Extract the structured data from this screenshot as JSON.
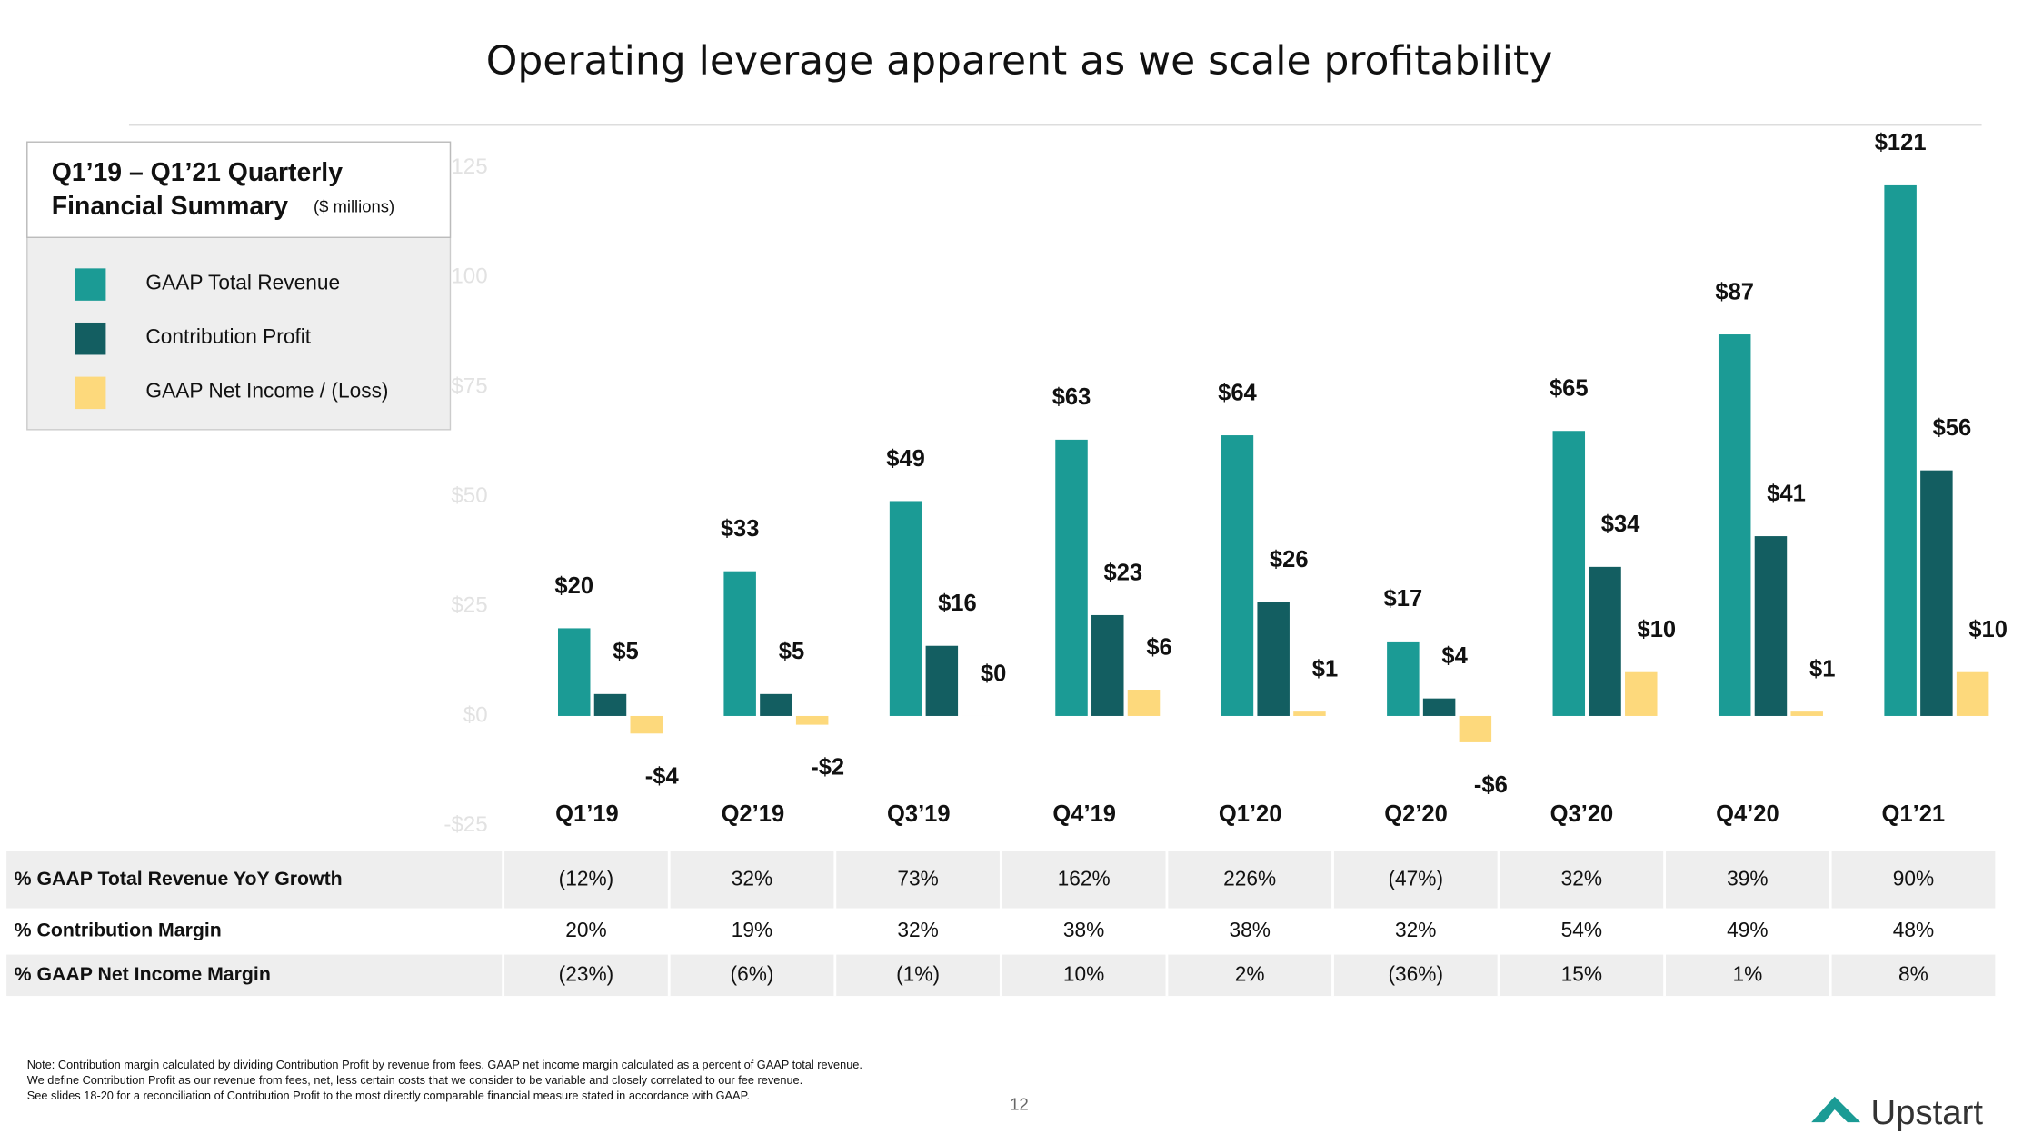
{
  "chart_data": {
    "type": "bar",
    "title": "Operating leverage apparent as we scale profitability",
    "legend_title": [
      "Q1’19 – Q1’21 Quarterly",
      "Financial Summary"
    ],
    "legend_subtitle": "($ millions)",
    "legend": "upper left",
    "categories": [
      "Q1’19",
      "Q2’19",
      "Q3’19",
      "Q4’19",
      "Q1’20",
      "Q2’20",
      "Q3’20",
      "Q4’20",
      "Q1’21"
    ],
    "series": [
      {
        "name": "GAAP Total Revenue",
        "color": "#1b9b95",
        "values": [
          20,
          33,
          49,
          63,
          64,
          17,
          65,
          87,
          121
        ],
        "value_labels": [
          "$20",
          "$33",
          "$49",
          "$63",
          "$64",
          "$17",
          "$65",
          "$87",
          "$121"
        ]
      },
      {
        "name": "Contribution Profit",
        "color": "#135e61",
        "values": [
          5,
          5,
          16,
          23,
          26,
          4,
          34,
          41,
          56
        ],
        "value_labels": [
          "$5",
          "$5",
          "$16",
          "$23",
          "$26",
          "$4",
          "$34",
          "$41",
          "$56"
        ]
      },
      {
        "name": "GAAP Net Income / (Loss)",
        "color": "#fdd97c",
        "values": [
          -4,
          -2,
          0,
          6,
          1,
          -6,
          10,
          1,
          10
        ],
        "value_labels": [
          "-$4",
          "-$2",
          "$0",
          "$6",
          "$1",
          "-$6",
          "$10",
          "$1",
          "$10"
        ]
      }
    ],
    "ylim": [
      -25,
      125
    ],
    "yticks": [
      {
        "value": -25,
        "label": "-$25"
      },
      {
        "value": 0,
        "label": "$0"
      },
      {
        "value": 25,
        "label": "$25"
      },
      {
        "value": 50,
        "label": "$50"
      },
      {
        "value": 75,
        "label": "$75"
      },
      {
        "value": 100,
        "label": "$100"
      },
      {
        "value": 125,
        "label": "$125"
      }
    ],
    "grid": false
  },
  "table": {
    "rows": [
      {
        "label": "% GAAP Total Revenue YoY Growth",
        "values": [
          "(12%)",
          "32%",
          "73%",
          "162%",
          "226%",
          "(47%)",
          "32%",
          "39%",
          "90%"
        ]
      },
      {
        "label": "% Contribution Margin",
        "values": [
          "20%",
          "19%",
          "32%",
          "38%",
          "38%",
          "32%",
          "54%",
          "49%",
          "48%"
        ]
      },
      {
        "label": "% GAAP Net Income Margin",
        "values": [
          "(23%)",
          "(6%)",
          "(1%)",
          "10%",
          "2%",
          "(36%)",
          "15%",
          "1%",
          "8%"
        ]
      }
    ]
  },
  "note": [
    "Note: Contribution margin calculated by dividing Contribution Profit by revenue from fees. GAAP net income margin calculated as a percent of GAAP total revenue.",
    "We define Contribution Profit as our revenue from fees, net, less certain costs that we consider to be variable and closely correlated to our fee revenue.",
    "See slides 18-20 for a reconciliation of Contribution Profit to the most directly comparable financial measure stated in accordance with GAAP."
  ],
  "page_number": "12",
  "logo": "Upstart"
}
